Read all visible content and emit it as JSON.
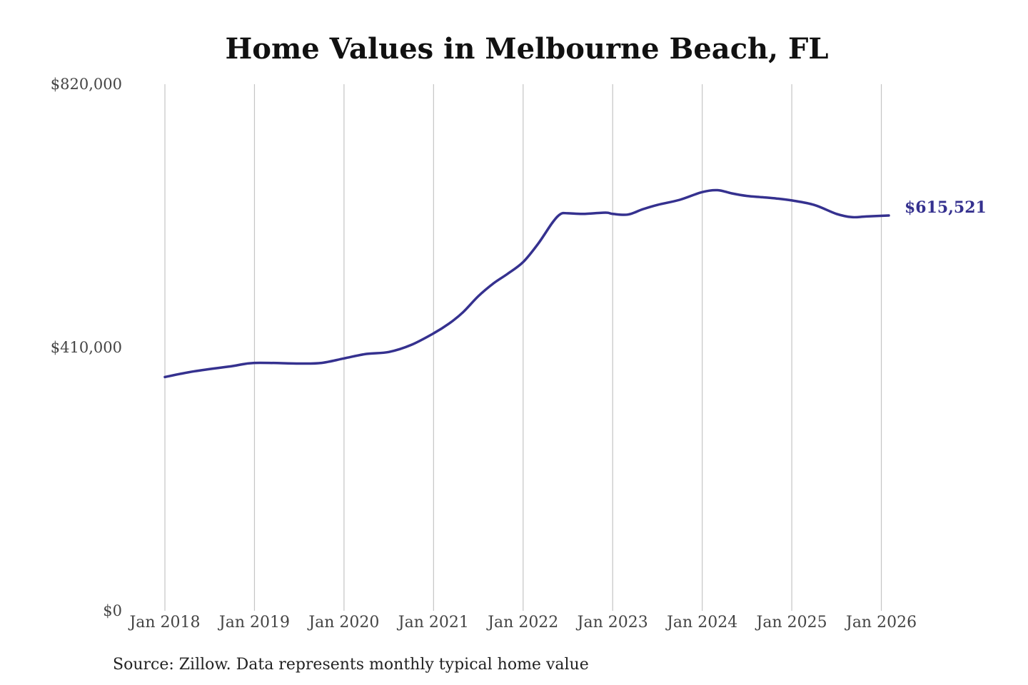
{
  "source_note": "Source: Zillow. Data represents monthly typical home value",
  "colors": {
    "line": "#35318f",
    "grid": "#c4c4c4",
    "text": "#444444"
  },
  "chart_data": {
    "type": "line",
    "title": "Home Values in Melbourne Beach, FL",
    "xlabel": "",
    "ylabel": "",
    "ylim": [
      0,
      820000
    ],
    "x_range": [
      2018.0,
      2026.0833
    ],
    "y_ticks": [
      {
        "value": 0,
        "label": "$0"
      },
      {
        "value": 410000,
        "label": "$410,000"
      },
      {
        "value": 820000,
        "label": "$820,000"
      }
    ],
    "x_ticks": [
      {
        "value": 2018,
        "label": "Jan 2018"
      },
      {
        "value": 2019,
        "label": "Jan 2019"
      },
      {
        "value": 2020,
        "label": "Jan 2020"
      },
      {
        "value": 2021,
        "label": "Jan 2021"
      },
      {
        "value": 2022,
        "label": "Jan 2022"
      },
      {
        "value": 2023,
        "label": "Jan 2023"
      },
      {
        "value": 2024,
        "label": "Jan 2024"
      },
      {
        "value": 2025,
        "label": "Jan 2025"
      },
      {
        "value": 2026,
        "label": "Jan 2026"
      }
    ],
    "vertical_grid": true,
    "series": [
      {
        "x": [
          2018.0,
          2018.33,
          2018.75,
          2019.0,
          2019.5,
          2019.75,
          2020.0,
          2020.25,
          2020.5,
          2020.75,
          2021.0,
          2021.17,
          2021.33,
          2021.5,
          2021.67,
          2021.83,
          2022.0,
          2022.17,
          2022.33,
          2022.42,
          2022.5,
          2022.67,
          2022.92,
          2023.0,
          2023.17,
          2023.33,
          2023.5,
          2023.75,
          2024.0,
          2024.17,
          2024.33,
          2024.5,
          2024.67,
          2024.83,
          2025.0,
          2025.25,
          2025.5,
          2025.67,
          2025.83,
          2026.0833
        ],
        "values": [
          364000,
          373000,
          381000,
          386000,
          385000,
          386000,
          393000,
          400000,
          403000,
          414000,
          432000,
          447000,
          465000,
          490000,
          510000,
          525000,
          543000,
          572000,
          605000,
          618000,
          619000,
          618000,
          620000,
          618000,
          617000,
          625000,
          632000,
          640000,
          652000,
          655000,
          650000,
          646000,
          644000,
          642000,
          639000,
          632000,
          618000,
          613000,
          614000,
          615521
        ],
        "end_label": "$615,521"
      }
    ]
  }
}
